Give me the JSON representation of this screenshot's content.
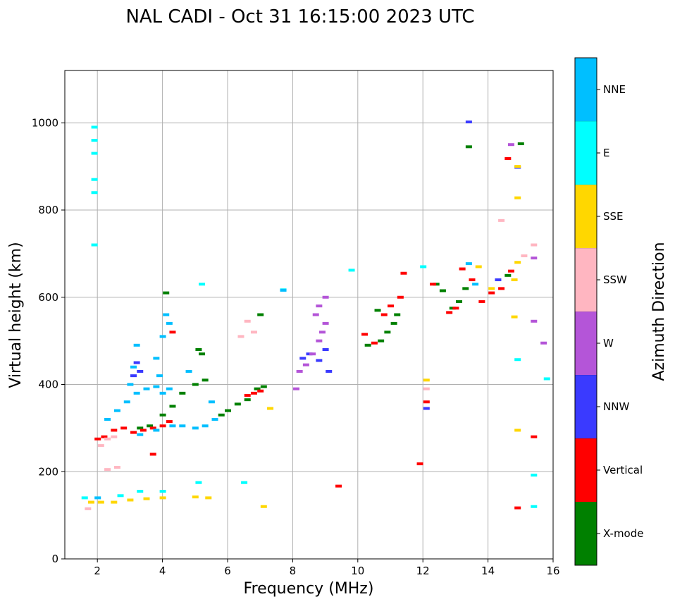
{
  "chart_data": {
    "type": "scatter",
    "title": "NAL CADI - Oct 31 16:15:00 2023 UTC",
    "xlabel": "Frequency (MHz)",
    "ylabel": "Virtual height (km)",
    "xlim": [
      1,
      16
    ],
    "ylim": [
      0,
      1120
    ],
    "xticks": [
      2,
      4,
      6,
      8,
      10,
      12,
      14,
      16
    ],
    "yticks": [
      0,
      200,
      400,
      600,
      800,
      1000
    ],
    "grid": true,
    "colorbar": {
      "label": "Azimuth Direction",
      "categories": [
        {
          "name": "X-mode",
          "color": "#008000"
        },
        {
          "name": "Vertical",
          "color": "#ff0000"
        },
        {
          "name": "NNW",
          "color": "#3a3aff"
        },
        {
          "name": "W",
          "color": "#b455d8"
        },
        {
          "name": "SSW",
          "color": "#ffb6c1"
        },
        {
          "name": "SSE",
          "color": "#ffd700"
        },
        {
          "name": "E",
          "color": "#00ffff"
        },
        {
          "name": "NNE",
          "color": "#00bfff"
        }
      ]
    },
    "series": [
      {
        "name": "X-mode",
        "points": [
          [
            4.0,
            330
          ],
          [
            4.3,
            350
          ],
          [
            4.6,
            380
          ],
          [
            5.0,
            400
          ],
          [
            5.3,
            410
          ],
          [
            5.8,
            330
          ],
          [
            6.0,
            340
          ],
          [
            6.3,
            355
          ],
          [
            6.6,
            365
          ],
          [
            6.9,
            390
          ],
          [
            7.1,
            395
          ],
          [
            3.3,
            300
          ],
          [
            3.6,
            305
          ],
          [
            4.1,
            610
          ],
          [
            5.1,
            480
          ],
          [
            5.2,
            470
          ],
          [
            7.0,
            560
          ],
          [
            10.3,
            490
          ],
          [
            10.7,
            500
          ],
          [
            10.9,
            520
          ],
          [
            11.1,
            540
          ],
          [
            11.2,
            560
          ],
          [
            10.6,
            570
          ],
          [
            12.4,
            630
          ],
          [
            12.6,
            615
          ],
          [
            12.9,
            575
          ],
          [
            13.1,
            590
          ],
          [
            13.3,
            620
          ],
          [
            13.4,
            945
          ],
          [
            14.6,
            650
          ],
          [
            15.0,
            952
          ]
        ]
      },
      {
        "name": "Vertical",
        "points": [
          [
            2.0,
            275
          ],
          [
            2.2,
            280
          ],
          [
            2.5,
            295
          ],
          [
            2.8,
            300
          ],
          [
            3.1,
            290
          ],
          [
            3.4,
            295
          ],
          [
            3.7,
            300
          ],
          [
            4.0,
            305
          ],
          [
            4.2,
            315
          ],
          [
            4.3,
            520
          ],
          [
            3.7,
            240
          ],
          [
            6.6,
            375
          ],
          [
            6.8,
            380
          ],
          [
            7.0,
            385
          ],
          [
            9.4,
            167
          ],
          [
            10.2,
            515
          ],
          [
            10.5,
            495
          ],
          [
            10.8,
            560
          ],
          [
            11.0,
            580
          ],
          [
            11.3,
            600
          ],
          [
            11.4,
            655
          ],
          [
            11.9,
            218
          ],
          [
            12.1,
            360
          ],
          [
            12.3,
            630
          ],
          [
            12.8,
            565
          ],
          [
            13.0,
            575
          ],
          [
            13.2,
            665
          ],
          [
            13.5,
            640
          ],
          [
            13.8,
            590
          ],
          [
            14.1,
            610
          ],
          [
            14.4,
            620
          ],
          [
            14.7,
            660
          ],
          [
            14.6,
            918
          ],
          [
            14.9,
            117
          ],
          [
            15.4,
            280
          ]
        ]
      },
      {
        "name": "NNW",
        "points": [
          [
            3.1,
            420
          ],
          [
            3.3,
            430
          ],
          [
            3.2,
            450
          ],
          [
            8.3,
            460
          ],
          [
            8.5,
            470
          ],
          [
            8.8,
            455
          ],
          [
            9.0,
            480
          ],
          [
            9.1,
            430
          ],
          [
            12.1,
            345
          ],
          [
            13.4,
            1002
          ],
          [
            14.9,
            898
          ],
          [
            14.3,
            640
          ]
        ]
      },
      {
        "name": "W",
        "points": [
          [
            8.2,
            430
          ],
          [
            8.4,
            445
          ],
          [
            8.6,
            470
          ],
          [
            8.8,
            500
          ],
          [
            8.9,
            520
          ],
          [
            9.0,
            540
          ],
          [
            8.7,
            560
          ],
          [
            8.8,
            580
          ],
          [
            9.0,
            600
          ],
          [
            8.1,
            390
          ],
          [
            14.7,
            950
          ],
          [
            15.4,
            690
          ],
          [
            15.4,
            545
          ],
          [
            15.7,
            495
          ]
        ]
      },
      {
        "name": "SSW",
        "points": [
          [
            1.7,
            115
          ],
          [
            2.1,
            260
          ],
          [
            2.3,
            275
          ],
          [
            2.5,
            280
          ],
          [
            2.3,
            205
          ],
          [
            2.6,
            210
          ],
          [
            6.4,
            510
          ],
          [
            6.6,
            545
          ],
          [
            6.8,
            520
          ],
          [
            12.1,
            390
          ],
          [
            14.4,
            776
          ],
          [
            15.4,
            720
          ],
          [
            15.1,
            695
          ]
        ]
      },
      {
        "name": "SSE",
        "points": [
          [
            1.8,
            130
          ],
          [
            2.1,
            130
          ],
          [
            2.5,
            130
          ],
          [
            3.0,
            135
          ],
          [
            3.5,
            138
          ],
          [
            4.0,
            140
          ],
          [
            5.0,
            142
          ],
          [
            5.4,
            140
          ],
          [
            7.1,
            120
          ],
          [
            7.3,
            345
          ],
          [
            12.1,
            410
          ],
          [
            13.7,
            670
          ],
          [
            14.1,
            620
          ],
          [
            14.8,
            555
          ],
          [
            14.9,
            828
          ],
          [
            14.9,
            900
          ],
          [
            14.9,
            295
          ],
          [
            14.9,
            680
          ],
          [
            14.8,
            640
          ]
        ]
      },
      {
        "name": "E",
        "points": [
          [
            1.9,
            990
          ],
          [
            1.9,
            960
          ],
          [
            1.9,
            930
          ],
          [
            1.9,
            870
          ],
          [
            1.9,
            840
          ],
          [
            1.9,
            720
          ],
          [
            1.6,
            140
          ],
          [
            2.7,
            145
          ],
          [
            3.3,
            155
          ],
          [
            4.0,
            155
          ],
          [
            5.1,
            175
          ],
          [
            6.5,
            175
          ],
          [
            5.2,
            630
          ],
          [
            7.7,
            617
          ],
          [
            9.8,
            662
          ],
          [
            12.0,
            670
          ],
          [
            14.9,
            457
          ],
          [
            15.4,
            192
          ],
          [
            15.4,
            120
          ],
          [
            15.8,
            413
          ]
        ]
      },
      {
        "name": "NNE",
        "points": [
          [
            2.0,
            140
          ],
          [
            2.3,
            320
          ],
          [
            2.6,
            340
          ],
          [
            2.9,
            360
          ],
          [
            3.2,
            380
          ],
          [
            3.5,
            390
          ],
          [
            3.8,
            395
          ],
          [
            4.0,
            380
          ],
          [
            4.2,
            390
          ],
          [
            3.0,
            400
          ],
          [
            3.1,
            440
          ],
          [
            3.2,
            490
          ],
          [
            3.9,
            420
          ],
          [
            3.8,
            460
          ],
          [
            4.0,
            510
          ],
          [
            4.1,
            560
          ],
          [
            4.2,
            540
          ],
          [
            4.6,
            305
          ],
          [
            5.0,
            300
          ],
          [
            5.3,
            305
          ],
          [
            5.6,
            320
          ],
          [
            4.3,
            305
          ],
          [
            3.8,
            295
          ],
          [
            3.3,
            285
          ],
          [
            4.8,
            430
          ],
          [
            5.5,
            360
          ],
          [
            7.7,
            616
          ],
          [
            13.4,
            677
          ],
          [
            13.6,
            630
          ]
        ]
      }
    ]
  }
}
